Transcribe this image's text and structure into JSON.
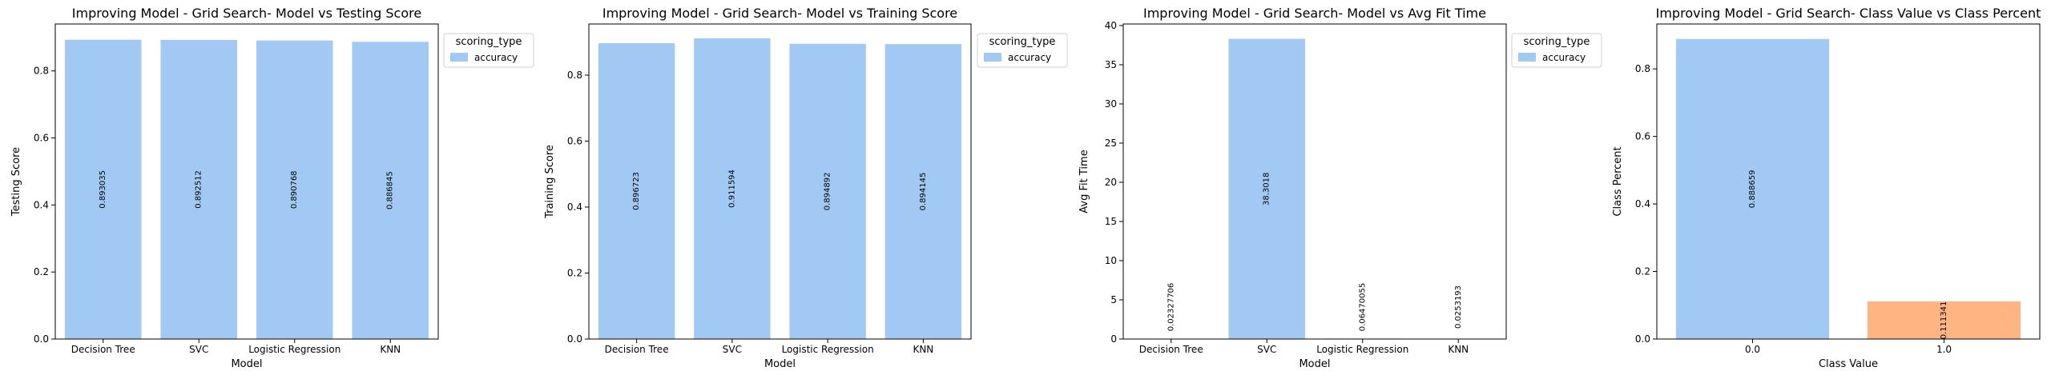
{
  "colors": {
    "blue": "#a1c9f4",
    "orange": "#ffb482"
  },
  "chart_data": [
    {
      "type": "bar",
      "title": "Improving Model - Grid Search- Model vs Testing Score",
      "xlabel": "Model",
      "ylabel": "Testing Score",
      "categories": [
        "Decision Tree",
        "SVC",
        "Logistic Regression",
        "KNN"
      ],
      "values": [
        0.893035,
        0.892512,
        0.890768,
        0.886845
      ],
      "labels": [
        "0.893035",
        "0.892512",
        "0.890768",
        "0.886845"
      ],
      "ylim": [
        0,
        0.94
      ],
      "yticks": [
        0.0,
        0.2,
        0.4,
        0.6,
        0.8
      ],
      "ytick_labels": [
        "0.0",
        "0.2",
        "0.4",
        "0.6",
        "0.8"
      ],
      "legend": {
        "title": "scoring_type",
        "entries": [
          "accuracy"
        ],
        "placement": "outside-upper-right"
      },
      "bar_colors": [
        "blue",
        "blue",
        "blue",
        "blue"
      ]
    },
    {
      "type": "bar",
      "title": "Improving Model - Grid Search- Model vs Training Score",
      "xlabel": "Model",
      "ylabel": "Training Score",
      "categories": [
        "Decision Tree",
        "SVC",
        "Logistic Regression",
        "KNN"
      ],
      "values": [
        0.896723,
        0.911594,
        0.894892,
        0.894145
      ],
      "labels": [
        "0.896723",
        "0.911594",
        "0.894892",
        "0.894145"
      ],
      "ylim": [
        0,
        0.955
      ],
      "yticks": [
        0.0,
        0.2,
        0.4,
        0.6,
        0.8
      ],
      "ytick_labels": [
        "0.0",
        "0.2",
        "0.4",
        "0.6",
        "0.8"
      ],
      "legend": {
        "title": "scoring_type",
        "entries": [
          "accuracy"
        ],
        "placement": "outside-upper-right"
      },
      "bar_colors": [
        "blue",
        "blue",
        "blue",
        "blue"
      ]
    },
    {
      "type": "bar",
      "title": "Improving Model - Grid Search- Model vs Avg Fit Time",
      "xlabel": "Model",
      "ylabel": "Avg Fit Time",
      "categories": [
        "Decision Tree",
        "SVC",
        "Logistic Regression",
        "KNN"
      ],
      "values": [
        0.02327706,
        38.3018,
        0.06470055,
        0.0253193
      ],
      "labels": [
        "0.02327706",
        "38.3018",
        "0.06470055",
        "0.0253193"
      ],
      "ylim": [
        0,
        40.2
      ],
      "yticks": [
        0,
        5,
        10,
        15,
        20,
        25,
        30,
        35,
        40
      ],
      "ytick_labels": [
        "0",
        "5",
        "10",
        "15",
        "20",
        "25",
        "30",
        "35",
        "40"
      ],
      "legend": {
        "title": "scoring_type",
        "entries": [
          "accuracy"
        ],
        "placement": "outside-upper-right"
      },
      "bar_colors": [
        "blue",
        "blue",
        "blue",
        "blue"
      ]
    },
    {
      "type": "bar",
      "title": "Improving Model - Grid Search- Class Value vs Class Percent",
      "xlabel": "Class Value",
      "ylabel": "Class Percent",
      "categories": [
        "0.0",
        "1.0"
      ],
      "values": [
        0.888659,
        0.111341
      ],
      "labels": [
        "0.888659",
        "0.111341"
      ],
      "ylim": [
        0,
        0.933
      ],
      "yticks": [
        0.0,
        0.2,
        0.4,
        0.6,
        0.8
      ],
      "ytick_labels": [
        "0.0",
        "0.2",
        "0.4",
        "0.6",
        "0.8"
      ],
      "legend": null,
      "bar_colors": [
        "blue",
        "orange"
      ]
    }
  ]
}
